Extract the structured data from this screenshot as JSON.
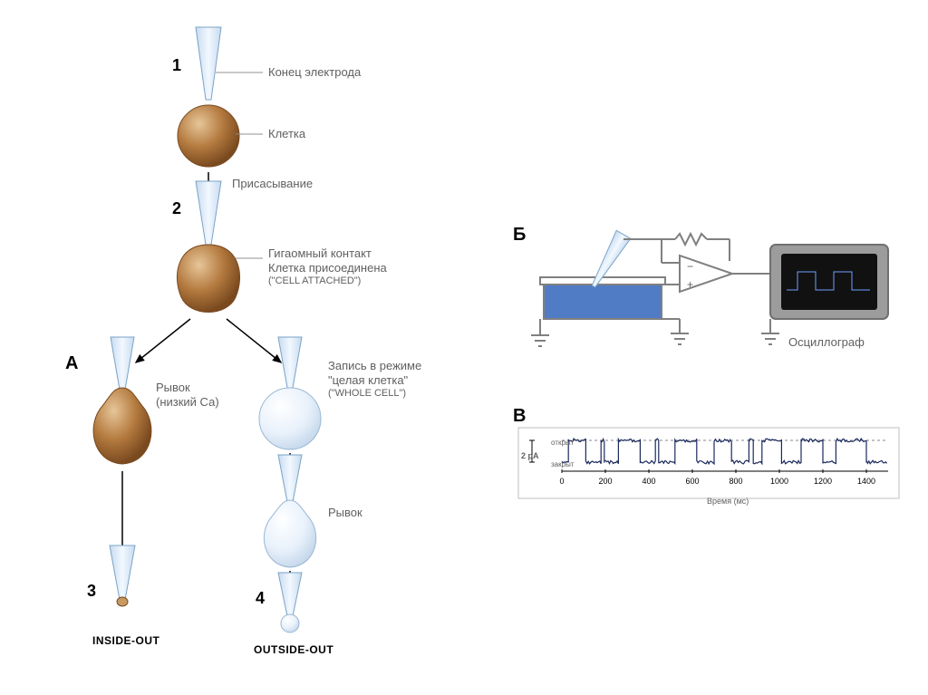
{
  "colors": {
    "bg": "#ffffff",
    "cellFill": "#b47a3f",
    "cellHi": "#d9a96b",
    "cellShadow": "#7a4a1f",
    "glassFill": "#e8f1fb",
    "glassStroke": "#7aa3c7",
    "line": "#909090",
    "arrow": "#000000",
    "text": "#606060",
    "bold": "#000000",
    "bathFill": "#4f7cc4",
    "bathStroke": "#808080",
    "ampStroke": "#808080",
    "scopeFill": "#1a1a1a",
    "trace": "#1b2a5e",
    "grid": "#bfbfbf"
  },
  "panelA": {
    "label": "А",
    "steps": {
      "s1": {
        "num": "1",
        "l1": "Конец электрода",
        "l2": "Клетка",
        "l3": "Присасывание"
      },
      "s2": {
        "num": "2",
        "l1": "Гигаомный контакт",
        "l2": "Клетка присоединена",
        "l3": "(\"CELL ATTACHED\")"
      },
      "left": {
        "l1": "Рывок",
        "l2": "(низкий Са)"
      },
      "right": {
        "l1": "Запись в режиме",
        "l2": "\"целая клетка\"",
        "l3": "(\"WHOLE CELL\")",
        "pull": "Рывок"
      },
      "s3": {
        "num": "3",
        "name": "INSIDE-OUT"
      },
      "s4": {
        "num": "4",
        "name": "OUTSIDE-OUT"
      }
    }
  },
  "panelB": {
    "label": "Б",
    "scope": "Осциллограф"
  },
  "panelC": {
    "label": "В",
    "yUnit": "2 pA",
    "openLbl": "открыт",
    "closedLbl": "закрыт",
    "xlabel": "Время (мс)",
    "xlim": [
      0,
      1500
    ],
    "xticks": [
      0,
      200,
      400,
      600,
      800,
      1000,
      1200,
      1400
    ],
    "levels": {
      "closed": 0,
      "open": 1
    },
    "segments": [
      [
        0,
        0
      ],
      [
        30,
        0
      ],
      [
        30,
        1
      ],
      [
        110,
        1
      ],
      [
        110,
        0
      ],
      [
        180,
        0
      ],
      [
        180,
        1
      ],
      [
        195,
        1
      ],
      [
        195,
        0
      ],
      [
        260,
        0
      ],
      [
        260,
        1
      ],
      [
        360,
        1
      ],
      [
        360,
        0
      ],
      [
        430,
        0
      ],
      [
        430,
        1
      ],
      [
        445,
        1
      ],
      [
        445,
        0
      ],
      [
        520,
        0
      ],
      [
        520,
        1
      ],
      [
        620,
        1
      ],
      [
        620,
        0
      ],
      [
        700,
        0
      ],
      [
        700,
        1
      ],
      [
        780,
        1
      ],
      [
        780,
        0
      ],
      [
        860,
        0
      ],
      [
        860,
        1
      ],
      [
        880,
        1
      ],
      [
        880,
        0
      ],
      [
        920,
        0
      ],
      [
        920,
        1
      ],
      [
        1010,
        1
      ],
      [
        1010,
        0
      ],
      [
        1100,
        0
      ],
      [
        1100,
        1
      ],
      [
        1200,
        1
      ],
      [
        1200,
        0
      ],
      [
        1260,
        0
      ],
      [
        1260,
        1
      ],
      [
        1400,
        1
      ],
      [
        1400,
        0
      ],
      [
        1500,
        0
      ]
    ],
    "traceWidth": 1.2,
    "noiseAmp": 0.08,
    "font": {
      "axis": 9,
      "small": 8
    }
  },
  "typography": {
    "label_fontsize": 13,
    "bold_fontsize": 18,
    "caption_fontsize": 12
  }
}
